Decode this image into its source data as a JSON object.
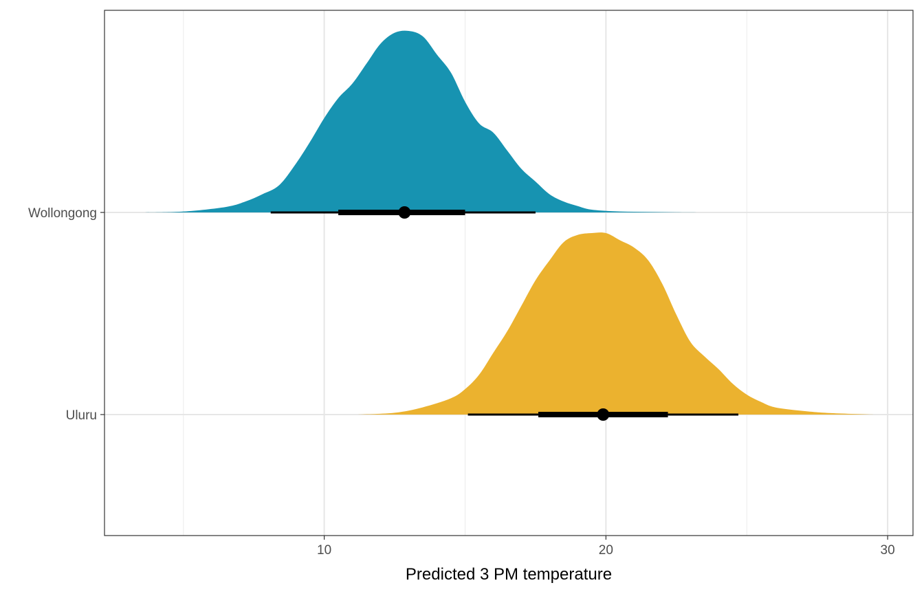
{
  "chart_data": {
    "type": "area",
    "xlabel": "Predicted 3 PM temperature",
    "ylabel": "",
    "xlim": [
      2.2,
      30.9
    ],
    "x_ticks": [
      10,
      20,
      30
    ],
    "x_tick_labels": [
      "10",
      "20",
      "30"
    ],
    "x_minor_gridlines": [
      5,
      15,
      25
    ],
    "grid": true,
    "legend": "none",
    "categories": [
      "Wollongong",
      "Uluru"
    ],
    "series": [
      {
        "name": "Wollongong",
        "color": "#1793B1",
        "density": {
          "x": [
            3.6,
            5.0,
            6.5,
            7.2,
            7.8,
            8.4,
            9.0,
            9.5,
            10.0,
            10.5,
            11.0,
            11.5,
            12.0,
            12.5,
            13.0,
            13.5,
            14.0,
            14.5,
            15.0,
            15.5,
            16.0,
            16.5,
            17.0,
            17.5,
            18.0,
            18.5,
            19.0,
            19.5,
            20.5,
            21.5,
            22.5,
            23.5
          ],
          "y": [
            0.0,
            0.005,
            0.03,
            0.06,
            0.1,
            0.15,
            0.27,
            0.39,
            0.52,
            0.63,
            0.71,
            0.82,
            0.93,
            0.99,
            1.0,
            0.97,
            0.87,
            0.77,
            0.61,
            0.49,
            0.44,
            0.34,
            0.24,
            0.17,
            0.1,
            0.06,
            0.035,
            0.015,
            0.005,
            0.003,
            0.001,
            0.0
          ]
        },
        "point": 12.85,
        "interval_66": [
          10.5,
          15.0
        ],
        "interval_95": [
          8.1,
          17.5
        ]
      },
      {
        "name": "Uluru",
        "color": "#EBB22F",
        "density": {
          "x": [
            11.2,
            12.5,
            13.5,
            14.5,
            15.0,
            15.5,
            16.0,
            16.5,
            17.0,
            17.5,
            18.0,
            18.5,
            19.0,
            19.5,
            20.0,
            20.5,
            21.0,
            21.5,
            22.0,
            22.5,
            23.0,
            23.5,
            24.0,
            24.5,
            25.0,
            25.5,
            26.0,
            27.0,
            28.0,
            29.5
          ],
          "y": [
            0.0,
            0.01,
            0.04,
            0.09,
            0.14,
            0.22,
            0.34,
            0.46,
            0.6,
            0.74,
            0.85,
            0.95,
            0.99,
            1.0,
            1.0,
            0.96,
            0.92,
            0.85,
            0.72,
            0.55,
            0.4,
            0.32,
            0.25,
            0.17,
            0.11,
            0.07,
            0.04,
            0.02,
            0.008,
            0.0
          ]
        },
        "point": 19.9,
        "interval_66": [
          17.6,
          22.2
        ],
        "interval_95": [
          15.1,
          24.7
        ]
      }
    ]
  }
}
